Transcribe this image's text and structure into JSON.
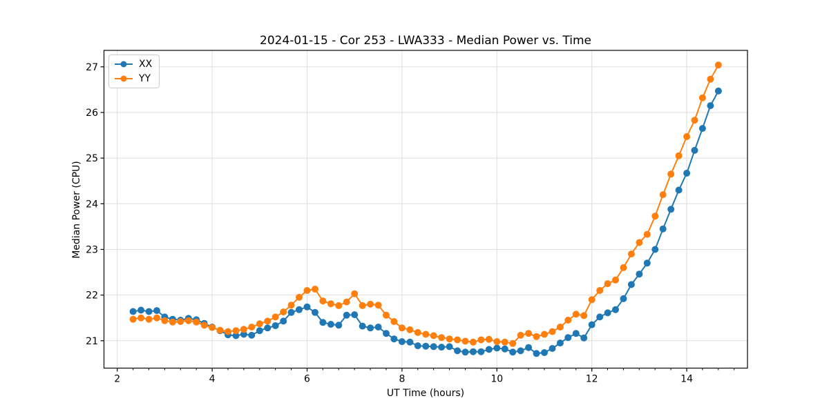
{
  "chart_data": {
    "type": "line",
    "title": "2024-01-15 - Cor 253 - LWA333 - Median Power vs. Time",
    "xlabel": "UT Time (hours)",
    "ylabel": "Median Power (CPU)",
    "xlim": [
      1.72,
      15.28
    ],
    "ylim": [
      20.4,
      27.36
    ],
    "x_major_ticks": [
      2,
      4,
      6,
      8,
      10,
      12,
      14
    ],
    "x_minor_step": 0.3333,
    "y_major_ticks": [
      21,
      22,
      23,
      24,
      25,
      26,
      27
    ],
    "grid": true,
    "grid_color": "#dedede",
    "spine_color": "#000000",
    "legend_position": "upper left",
    "marker": "o",
    "x": [
      2.333,
      2.5,
      2.667,
      2.833,
      3.0,
      3.167,
      3.333,
      3.5,
      3.667,
      3.833,
      4.0,
      4.167,
      4.333,
      4.5,
      4.667,
      4.833,
      5.0,
      5.167,
      5.333,
      5.5,
      5.667,
      5.833,
      6.0,
      6.167,
      6.333,
      6.5,
      6.667,
      6.833,
      7.0,
      7.167,
      7.333,
      7.5,
      7.667,
      7.833,
      8.0,
      8.167,
      8.333,
      8.5,
      8.667,
      8.833,
      9.0,
      9.167,
      9.333,
      9.5,
      9.667,
      9.833,
      10.0,
      10.167,
      10.333,
      10.5,
      10.667,
      10.833,
      11.0,
      11.167,
      11.333,
      11.5,
      11.667,
      11.833,
      12.0,
      12.167,
      12.333,
      12.5,
      12.667,
      12.833,
      13.0,
      13.167,
      13.333,
      13.5,
      13.667,
      13.833,
      14.0,
      14.167,
      14.333,
      14.5,
      14.667
    ],
    "series": [
      {
        "name": "XX",
        "color": "#1f77b4",
        "values": [
          21.64,
          21.67,
          21.64,
          21.66,
          21.52,
          21.47,
          21.45,
          21.49,
          21.46,
          21.38,
          21.3,
          21.22,
          21.13,
          21.11,
          21.14,
          21.12,
          21.22,
          21.28,
          21.33,
          21.43,
          21.62,
          21.68,
          21.74,
          21.62,
          21.4,
          21.36,
          21.34,
          21.56,
          21.57,
          21.32,
          21.28,
          21.3,
          21.16,
          21.04,
          20.98,
          20.97,
          20.89,
          20.88,
          20.87,
          20.86,
          20.87,
          20.78,
          20.75,
          20.76,
          20.76,
          20.81,
          20.84,
          20.82,
          20.75,
          20.78,
          20.85,
          20.72,
          20.74,
          20.83,
          20.95,
          21.07,
          21.16,
          21.06,
          21.35,
          21.52,
          21.61,
          21.68,
          21.92,
          22.23,
          22.46,
          22.7,
          23.0,
          23.45,
          23.88,
          24.3,
          24.67,
          25.17,
          25.65,
          26.15,
          26.47
        ]
      },
      {
        "name": "YY",
        "color": "#ff7f0e",
        "values": [
          21.47,
          21.5,
          21.47,
          21.5,
          21.44,
          21.41,
          21.42,
          21.44,
          21.41,
          21.34,
          21.29,
          21.23,
          21.2,
          21.22,
          21.25,
          21.3,
          21.37,
          21.43,
          21.52,
          21.63,
          21.78,
          21.95,
          22.1,
          22.13,
          21.87,
          21.81,
          21.77,
          21.85,
          22.03,
          21.77,
          21.8,
          21.78,
          21.56,
          21.42,
          21.28,
          21.24,
          21.18,
          21.14,
          21.11,
          21.07,
          21.04,
          21.02,
          20.99,
          20.97,
          21.02,
          21.03,
          20.98,
          20.97,
          20.94,
          21.12,
          21.16,
          21.09,
          21.14,
          21.2,
          21.3,
          21.45,
          21.58,
          21.55,
          21.9,
          22.1,
          22.25,
          22.33,
          22.6,
          22.9,
          23.15,
          23.33,
          23.73,
          24.2,
          24.65,
          25.05,
          25.47,
          25.83,
          26.32,
          26.73,
          27.04
        ]
      }
    ]
  }
}
